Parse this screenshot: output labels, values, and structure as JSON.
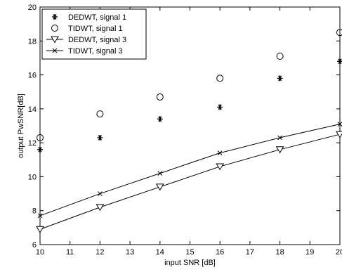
{
  "chart_data": {
    "type": "line",
    "title": "",
    "xlabel": "input SNR [dB]",
    "ylabel": "output PwSNR[dB]",
    "xlim": [
      10,
      20
    ],
    "ylim": [
      6,
      20
    ],
    "xticks": [
      10,
      11,
      12,
      13,
      14,
      15,
      16,
      17,
      18,
      19,
      20
    ],
    "yticks": [
      6,
      8,
      10,
      12,
      14,
      16,
      18,
      20
    ],
    "grid": false,
    "legend_position": "top-left",
    "series": [
      {
        "name": "DEDWT, signal 1",
        "marker": "asterisk",
        "line": false,
        "x": [
          10,
          12,
          14,
          16,
          18,
          20
        ],
        "y": [
          11.6,
          12.3,
          13.4,
          14.1,
          15.8,
          16.8
        ]
      },
      {
        "name": "TIDWT, signal 1",
        "marker": "circle",
        "line": false,
        "x": [
          10,
          12,
          14,
          16,
          18,
          20
        ],
        "y": [
          12.3,
          13.7,
          14.7,
          15.8,
          17.1,
          18.5
        ]
      },
      {
        "name": "DEDWT, signal 3",
        "marker": "triangle-down",
        "line": true,
        "x": [
          10,
          12,
          14,
          16,
          18,
          20
        ],
        "y": [
          6.9,
          8.2,
          9.4,
          10.6,
          11.6,
          12.5
        ]
      },
      {
        "name": "TIDWT, signal 3",
        "marker": "x",
        "line": true,
        "x": [
          10,
          12,
          14,
          16,
          18,
          20
        ],
        "y": [
          7.7,
          9.0,
          10.2,
          11.4,
          12.3,
          13.1
        ]
      }
    ]
  }
}
